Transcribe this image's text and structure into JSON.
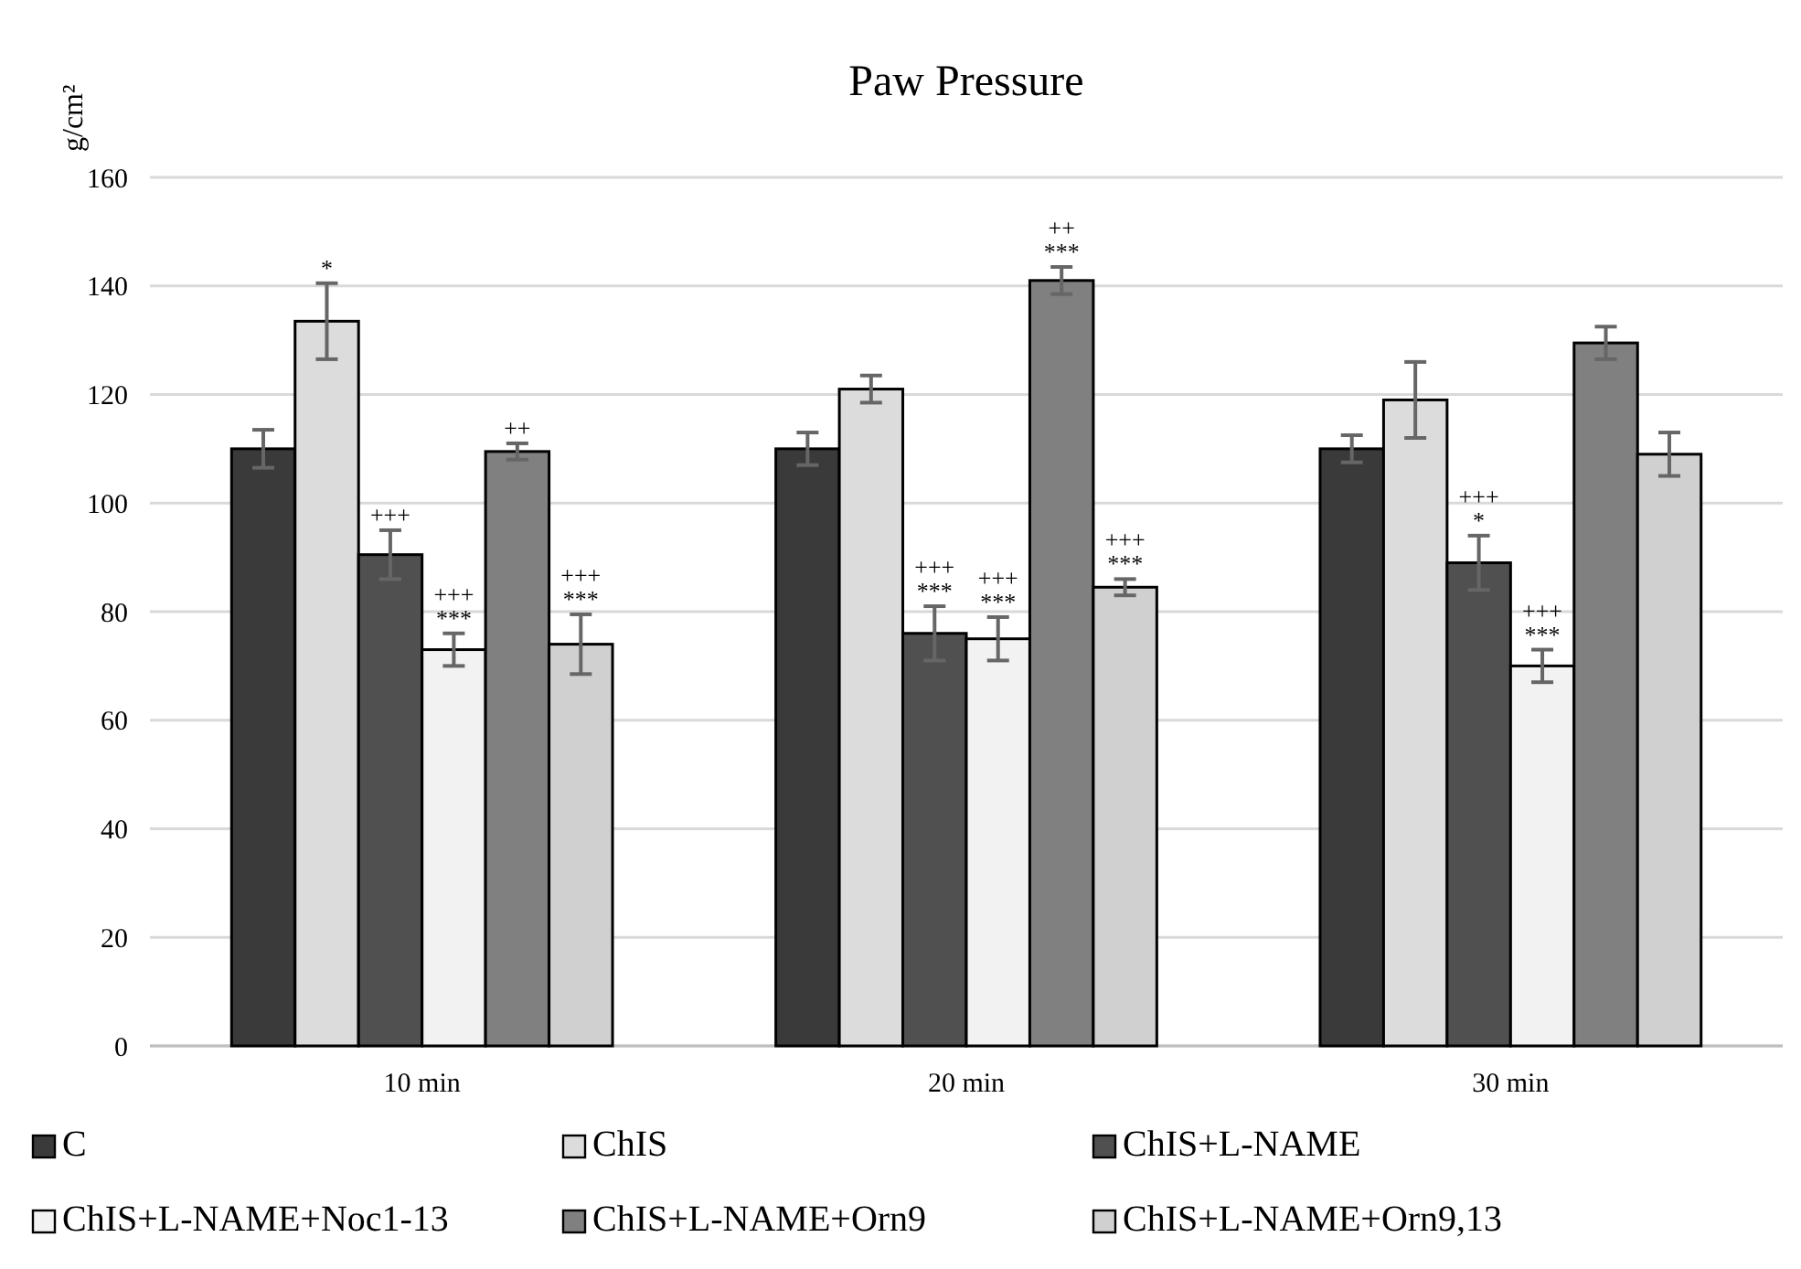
{
  "chart_data": {
    "type": "bar",
    "title": "Paw Pressure",
    "ylabel": "g/cm²",
    "categories": [
      "10 min",
      "20 min",
      "30 min"
    ],
    "series": [
      {
        "name": "C",
        "color": "#3a3a3a",
        "values": [
          110,
          110,
          110
        ],
        "errors": [
          3.5,
          3,
          2.5
        ],
        "value_labels": [
          null,
          null,
          null
        ]
      },
      {
        "name": "ChIS",
        "color": "#dcdcdc",
        "values": [
          133.5,
          121,
          119
        ],
        "errors": [
          7,
          2.5,
          7
        ],
        "value_labels": [
          "*",
          null,
          null
        ]
      },
      {
        "name": "ChIS+L-NAME",
        "color": "#505050",
        "values": [
          90.5,
          76,
          89
        ],
        "errors": [
          4.5,
          5,
          5
        ],
        "value_labels": [
          "+++",
          "+++\n***",
          "+++\n*"
        ]
      },
      {
        "name": "ChIS+L-NAME+Noc1-13",
        "color": "#f2f2f2",
        "values": [
          73,
          75,
          70
        ],
        "errors": [
          3,
          4,
          3
        ],
        "value_labels": [
          "+++\n***",
          "+++\n***",
          "+++\n***"
        ]
      },
      {
        "name": "ChIS+L-NAME+Orn9",
        "color": "#808080",
        "values": [
          109.5,
          141,
          129.5
        ],
        "errors": [
          1.5,
          2.5,
          3
        ],
        "value_labels": [
          "++",
          "++\n***",
          null
        ]
      },
      {
        "name": "ChIS+L-NAME+Orn9,13",
        "color": "#d0d0d0",
        "values": [
          74,
          84.5,
          109
        ],
        "errors": [
          5.5,
          1.5,
          4
        ],
        "value_labels": [
          "+++\n***",
          "+++\n***",
          null
        ]
      }
    ],
    "ylim": [
      0,
      160
    ],
    "yticks": [
      0,
      20,
      40,
      60,
      80,
      100,
      120,
      140,
      160
    ],
    "grid": "y",
    "legend": "bottom"
  }
}
